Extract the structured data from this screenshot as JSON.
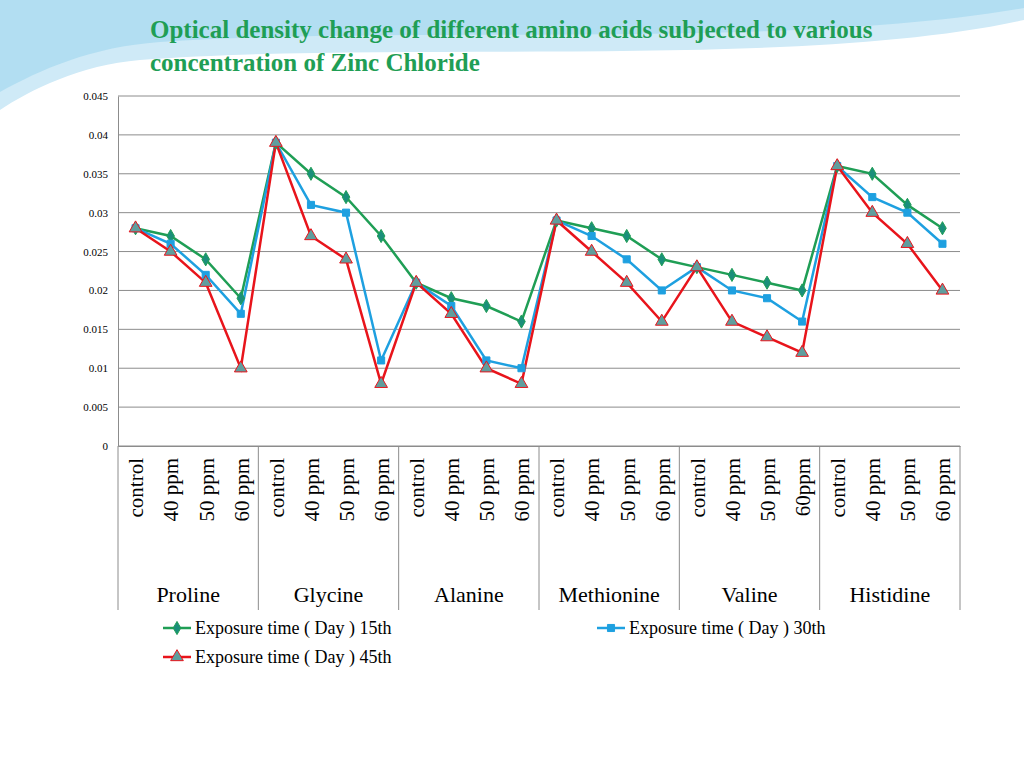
{
  "chart_data": {
    "type": "line",
    "title": "Optical density change of different amino acids subjected to various concentration of Zinc Chloride",
    "categories": [
      "control",
      "40 ppm",
      "50 ppm",
      "60 ppm",
      "control",
      "40 ppm",
      "50 ppm",
      "60 ppm",
      "control",
      "40 ppm",
      "50 ppm",
      "60 ppm",
      "control",
      "40 ppm",
      "50 ppm",
      "60 ppm",
      "control",
      "40 ppm",
      "50 ppm",
      "60ppm",
      "control",
      "40 ppm",
      "50 ppm",
      "60 ppm"
    ],
    "category_groups": [
      "Proline",
      "Glycine",
      "Alanine",
      "Methionine",
      "Valine",
      "Histidine"
    ],
    "series": [
      {
        "name": "Exposure time ( Day ) 15th",
        "color": "#1f9e55",
        "marker": "diamond",
        "values": [
          0.028,
          0.027,
          0.024,
          0.019,
          0.039,
          0.035,
          0.032,
          0.027,
          0.021,
          0.019,
          0.018,
          0.016,
          0.029,
          0.028,
          0.027,
          0.024,
          0.023,
          0.022,
          0.021,
          0.02,
          0.036,
          0.035,
          0.031,
          0.028
        ]
      },
      {
        "name": "Exposure time ( Day ) 30th",
        "color": "#1ea0e0",
        "marker": "square",
        "values": [
          0.028,
          0.026,
          0.022,
          0.017,
          0.039,
          0.031,
          0.03,
          0.011,
          0.021,
          0.018,
          0.011,
          0.01,
          0.029,
          0.027,
          0.024,
          0.02,
          0.023,
          0.02,
          0.019,
          0.016,
          0.036,
          0.032,
          0.03,
          0.026
        ]
      },
      {
        "name": "Exposure time ( Day ) 45th",
        "color": "#e8141b",
        "marker": "triangle",
        "values": [
          0.028,
          0.025,
          0.021,
          0.01,
          0.039,
          0.027,
          0.024,
          0.008,
          0.021,
          0.017,
          0.01,
          0.008,
          0.029,
          0.025,
          0.021,
          0.016,
          0.023,
          0.016,
          0.014,
          0.012,
          0.036,
          0.03,
          0.026,
          0.02
        ]
      }
    ],
    "ylim": [
      0,
      0.045
    ],
    "yticks": [
      0,
      0.005,
      0.01,
      0.015,
      0.02,
      0.025,
      0.03,
      0.035,
      0.04,
      0.045
    ],
    "grid": true,
    "legend": "bottom"
  }
}
